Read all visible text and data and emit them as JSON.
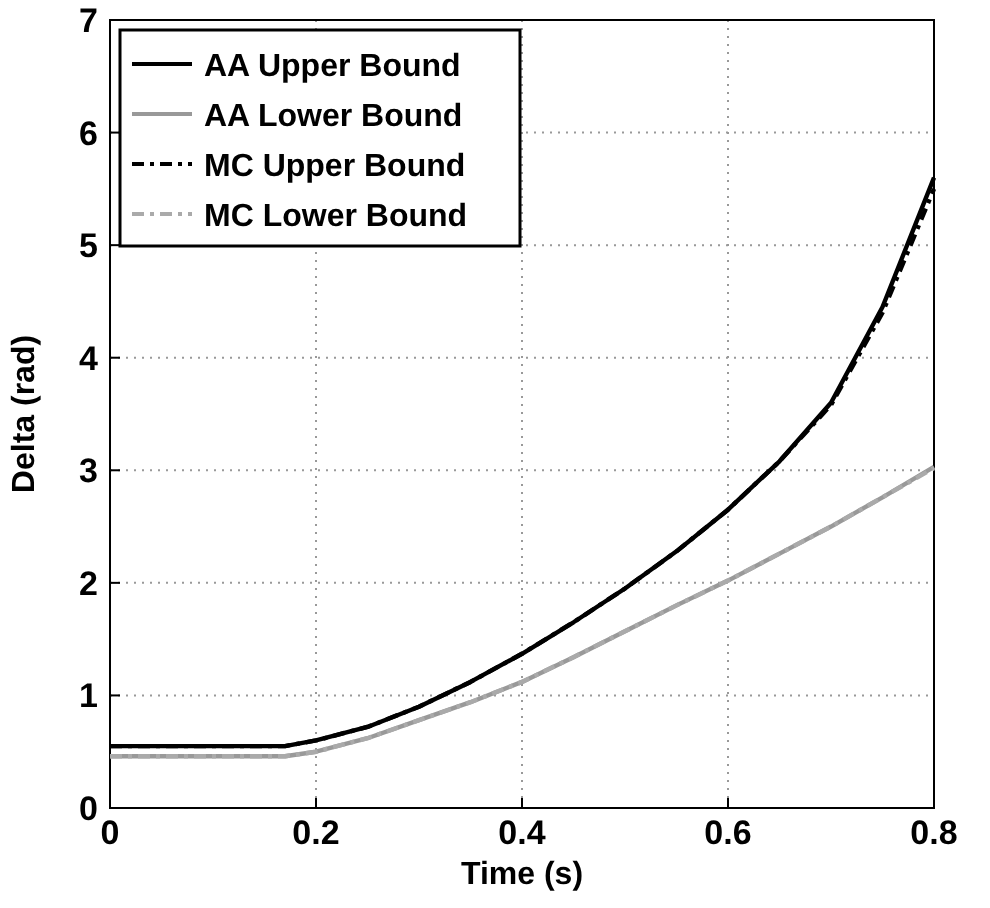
{
  "chart_data": {
    "type": "line",
    "xlabel": "Time (s)",
    "ylabel": "Delta (rad)",
    "xlim": [
      0,
      0.8
    ],
    "ylim": [
      0,
      7
    ],
    "xticks": [
      0,
      0.2,
      0.4,
      0.6,
      0.8
    ],
    "yticks": [
      0,
      1,
      2,
      3,
      4,
      5,
      6,
      7
    ],
    "grid": true,
    "legend": "top left",
    "x": [
      0,
      0.1,
      0.17,
      0.2,
      0.25,
      0.3,
      0.35,
      0.4,
      0.45,
      0.5,
      0.55,
      0.6,
      0.65,
      0.7,
      0.75,
      0.8
    ],
    "series": [
      {
        "name": "AA Upper Bound",
        "color": "#000000",
        "line_style": "solid",
        "values": [
          0.55,
          0.55,
          0.55,
          0.6,
          0.72,
          0.9,
          1.12,
          1.37,
          1.65,
          1.95,
          2.28,
          2.65,
          3.08,
          3.6,
          4.45,
          5.6
        ]
      },
      {
        "name": "AA Lower Bound",
        "color": "#999999",
        "line_style": "solid",
        "values": [
          0.46,
          0.46,
          0.46,
          0.5,
          0.62,
          0.78,
          0.94,
          1.12,
          1.34,
          1.57,
          1.8,
          2.02,
          2.26,
          2.5,
          2.76,
          3.03
        ]
      },
      {
        "name": "MC Upper Bound",
        "color": "#000000",
        "line_style": "dashed",
        "values": [
          0.55,
          0.55,
          0.55,
          0.6,
          0.72,
          0.9,
          1.12,
          1.37,
          1.65,
          1.95,
          2.28,
          2.65,
          3.08,
          3.58,
          4.4,
          5.5
        ]
      },
      {
        "name": "MC Lower Bound",
        "color": "#aaaaaa",
        "line_style": "dashed",
        "values": [
          0.46,
          0.46,
          0.46,
          0.5,
          0.62,
          0.78,
          0.94,
          1.12,
          1.34,
          1.57,
          1.8,
          2.02,
          2.26,
          2.5,
          2.76,
          3.02
        ]
      }
    ]
  }
}
